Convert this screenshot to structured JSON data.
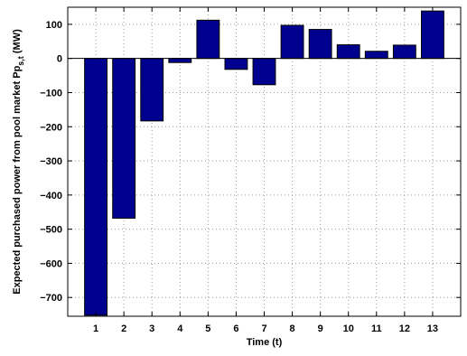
{
  "chart_data": {
    "type": "bar",
    "xlabel": "Time (t)",
    "ylabel": {
      "main": "Expected purchased power from pool market Pp",
      "subscript": "s,t",
      "unit": " (MW)"
    },
    "categories": [
      "1",
      "2",
      "3",
      "4",
      "5",
      "6",
      "7",
      "8",
      "9",
      "10",
      "11",
      "12",
      "13"
    ],
    "values": [
      -752,
      -468,
      -183,
      -12,
      112,
      -32,
      -77,
      97,
      85,
      40,
      21,
      39,
      139
    ],
    "ylim": [
      -755,
      150
    ],
    "yticks": [
      -700,
      -600,
      -500,
      -400,
      -300,
      -200,
      -100,
      0,
      100
    ],
    "grid": true,
    "bar_color": "#00008f",
    "bar_edge_color": "#000000"
  }
}
